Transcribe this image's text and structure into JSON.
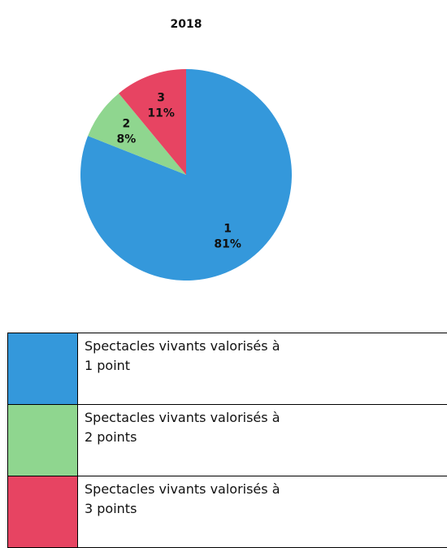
{
  "chart_data": {
    "type": "pie",
    "title": "2018",
    "categories": [
      "1",
      "2",
      "3"
    ],
    "values": [
      81,
      8,
      11
    ],
    "value_labels": [
      "81%",
      "8%",
      "11%"
    ],
    "colors": [
      "#3498db",
      "#8fd68f",
      "#e74462"
    ],
    "legend": [
      [
        "Spectacles vivants valorisés à",
        "1 point"
      ],
      [
        "Spectacles vivants valorisés à",
        "2 points"
      ],
      [
        "Spectacles vivants valorisés à",
        "3 points"
      ]
    ]
  }
}
